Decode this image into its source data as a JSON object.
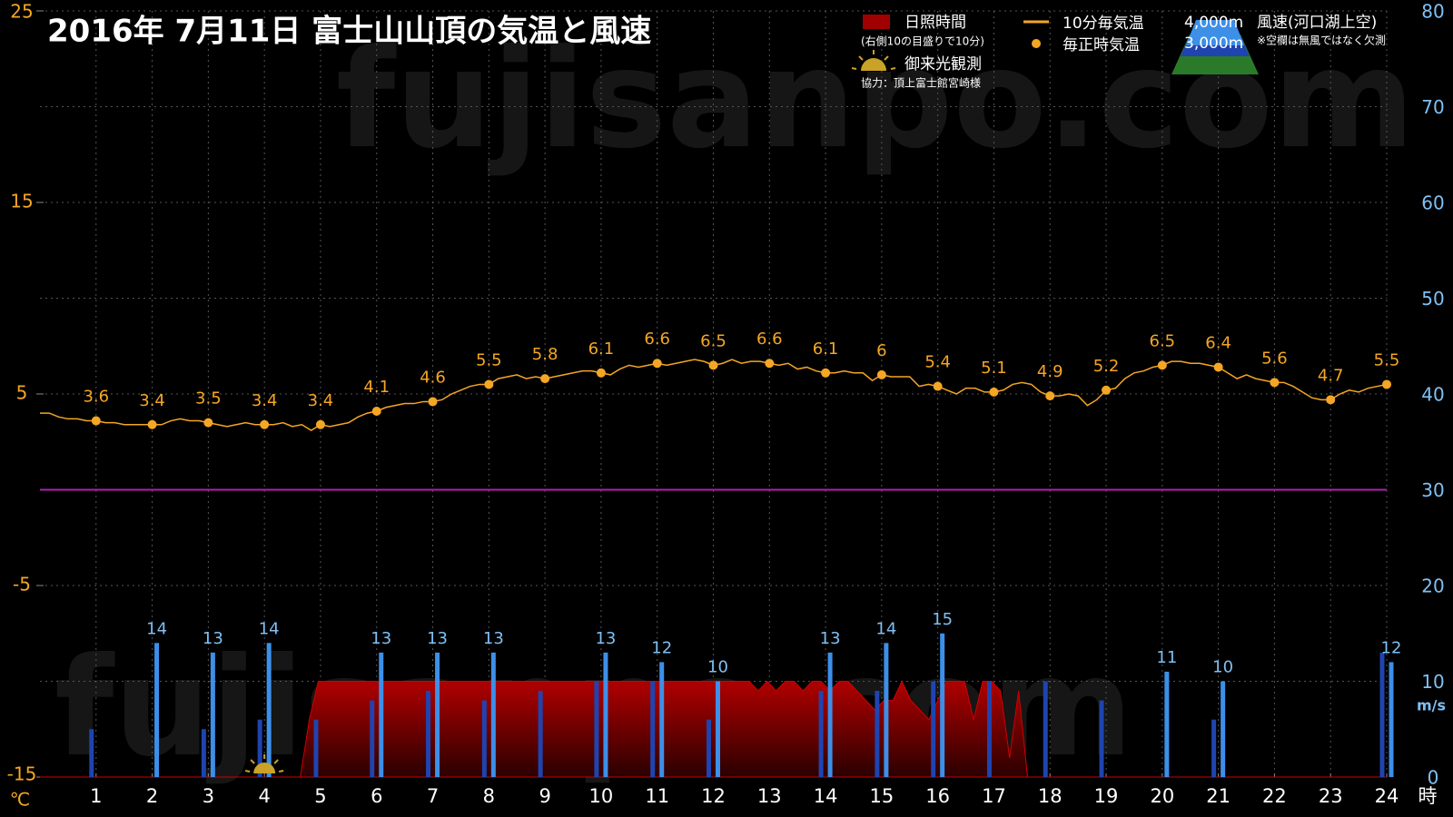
{
  "chart_data": {
    "type": "combo",
    "title": "2016年  7月11日   富士山山頂の気温と風速",
    "watermark": "fujisanpo.com",
    "x_unit": "時",
    "y_unit": "℃",
    "y2_unit": "m/s",
    "xlim": [
      0,
      24
    ],
    "xticks": [
      1,
      2,
      3,
      4,
      5,
      6,
      7,
      8,
      9,
      10,
      11,
      12,
      13,
      14,
      15,
      16,
      17,
      18,
      19,
      20,
      21,
      22,
      23,
      24
    ],
    "ylim": [
      -15,
      25
    ],
    "yticks": [
      -15,
      -5,
      5,
      15,
      25
    ],
    "y2lim": [
      0,
      80
    ],
    "y2ticks": [
      0,
      10,
      20,
      30,
      40,
      50,
      60,
      70,
      80
    ],
    "grid": true,
    "reference_line": {
      "value": 0,
      "color": "#b020b0"
    },
    "sunrise": {
      "label": "御来光観測",
      "x": 4
    },
    "credit": "協力：頂上富士館宮崎様",
    "wind_legend_title": "風速(河口湖上空)",
    "wind_legend_note": "※空欄は無風ではなく欠測",
    "series": [
      {
        "name": "10分毎気温",
        "type": "line",
        "color": "#f5a623",
        "values": [
          4.0,
          4.0,
          3.8,
          3.7,
          3.7,
          3.6,
          3.6,
          3.5,
          3.5,
          3.4,
          3.4,
          3.4,
          3.4,
          3.4,
          3.6,
          3.7,
          3.6,
          3.6,
          3.5,
          3.4,
          3.3,
          3.4,
          3.5,
          3.4,
          3.4,
          3.4,
          3.5,
          3.3,
          3.4,
          3.1,
          3.4,
          3.3,
          3.4,
          3.5,
          3.8,
          4.0,
          4.1,
          4.3,
          4.4,
          4.5,
          4.5,
          4.6,
          4.6,
          4.7,
          5.0,
          5.2,
          5.4,
          5.5,
          5.5,
          5.8,
          5.9,
          6.0,
          5.8,
          5.9,
          5.8,
          5.9,
          6.0,
          6.1,
          6.2,
          6.2,
          6.1,
          6.0,
          6.3,
          6.5,
          6.4,
          6.5,
          6.6,
          6.5,
          6.6,
          6.7,
          6.8,
          6.7,
          6.5,
          6.6,
          6.8,
          6.6,
          6.7,
          6.7,
          6.6,
          6.5,
          6.6,
          6.3,
          6.4,
          6.2,
          6.1,
          6.1,
          6.2,
          6.1,
          6.1,
          5.7,
          6.0,
          5.9,
          5.9,
          5.9,
          5.4,
          5.5,
          5.4,
          5.2,
          5.0,
          5.3,
          5.3,
          5.1,
          5.1,
          5.2,
          5.5,
          5.6,
          5.5,
          5.1,
          4.9,
          4.9,
          5.0,
          4.9,
          4.4,
          4.7,
          5.2,
          5.3,
          5.8,
          6.1,
          6.2,
          6.4,
          6.5,
          6.7,
          6.7,
          6.6,
          6.6,
          6.5,
          6.4,
          6.1,
          5.8,
          6.0,
          5.8,
          5.7,
          5.6,
          5.6,
          5.4,
          5.1,
          4.8,
          4.7,
          4.7,
          5.0,
          5.2,
          5.1,
          5.3,
          5.4,
          5.5
        ]
      },
      {
        "name": "毎正時気温",
        "type": "scatter",
        "color": "#f5a623",
        "show_values": true,
        "x": [
          1,
          2,
          3,
          4,
          5,
          6,
          7,
          8,
          9,
          10,
          11,
          12,
          13,
          14,
          15,
          16,
          17,
          18,
          19,
          20,
          21,
          22,
          23,
          24
        ],
        "values": [
          3.6,
          3.4,
          3.5,
          3.4,
          3.4,
          4.1,
          4.6,
          5.5,
          5.8,
          6.1,
          6.6,
          6.5,
          6.6,
          6.1,
          6,
          5.4,
          5.1,
          4.9,
          5.2,
          6.5,
          6.4,
          5.6,
          4.7,
          5.5
        ]
      },
      {
        "name": "日照時間",
        "legend_subtitle": "(右側10の目盛りで10分)",
        "type": "area",
        "axis": "y2",
        "color": "#a00000",
        "values": [
          0,
          0,
          0,
          0,
          0,
          0,
          0,
          0,
          0,
          0,
          0,
          0,
          0,
          0,
          0,
          0,
          0,
          0,
          0,
          0,
          0,
          0,
          0,
          0,
          0,
          0,
          0,
          0,
          0,
          0,
          6,
          10,
          10,
          10,
          10,
          10,
          10,
          10,
          10,
          10,
          10,
          10,
          10,
          10,
          10,
          10,
          10,
          10,
          10,
          10,
          10,
          10,
          10,
          10,
          10,
          10,
          10,
          10,
          10,
          10,
          10,
          10,
          10,
          10,
          10,
          10,
          10,
          10,
          10,
          10,
          10,
          10,
          10,
          10,
          10,
          10,
          10,
          10,
          10,
          10,
          9,
          10,
          9,
          10,
          10,
          9,
          10,
          10,
          9,
          10,
          10,
          9,
          8,
          7,
          8,
          8,
          10,
          8,
          7,
          6,
          8,
          10,
          10,
          10,
          6,
          10,
          10,
          9,
          2,
          9,
          0,
          0,
          0,
          0,
          0,
          0,
          0,
          0,
          0,
          0,
          0,
          0,
          0,
          0,
          0,
          0,
          0,
          0,
          0,
          0,
          0,
          0,
          0,
          0,
          0,
          0,
          0,
          0,
          0,
          0,
          0,
          0,
          0,
          0,
          0,
          0,
          0,
          0,
          0,
          0,
          0
        ]
      },
      {
        "name": "4,000m",
        "type": "bar",
        "axis": "y2",
        "color": "#3d8fe8",
        "show_values": true,
        "x": [
          1,
          2,
          3,
          4,
          5,
          6,
          7,
          8,
          9,
          10,
          11,
          12,
          13,
          14,
          15,
          16,
          17,
          18,
          19,
          20,
          21,
          22,
          23,
          24
        ],
        "values": [
          null,
          14,
          13,
          14,
          null,
          13,
          13,
          13,
          null,
          13,
          12,
          10,
          null,
          13,
          14,
          15,
          null,
          null,
          null,
          11,
          10,
          null,
          null,
          12
        ]
      },
      {
        "name": "3,000m",
        "type": "bar",
        "axis": "y2",
        "color": "#1f44b0",
        "x": [
          1,
          2,
          3,
          4,
          5,
          6,
          7,
          8,
          9,
          10,
          11,
          12,
          13,
          14,
          15,
          16,
          17,
          18,
          19,
          20,
          21,
          22,
          23,
          24
        ],
        "values": [
          5,
          null,
          5,
          6,
          6,
          8,
          9,
          8,
          9,
          10,
          10,
          6,
          null,
          9,
          9,
          10,
          10,
          10,
          8,
          null,
          6,
          null,
          null,
          13
        ]
      }
    ]
  }
}
